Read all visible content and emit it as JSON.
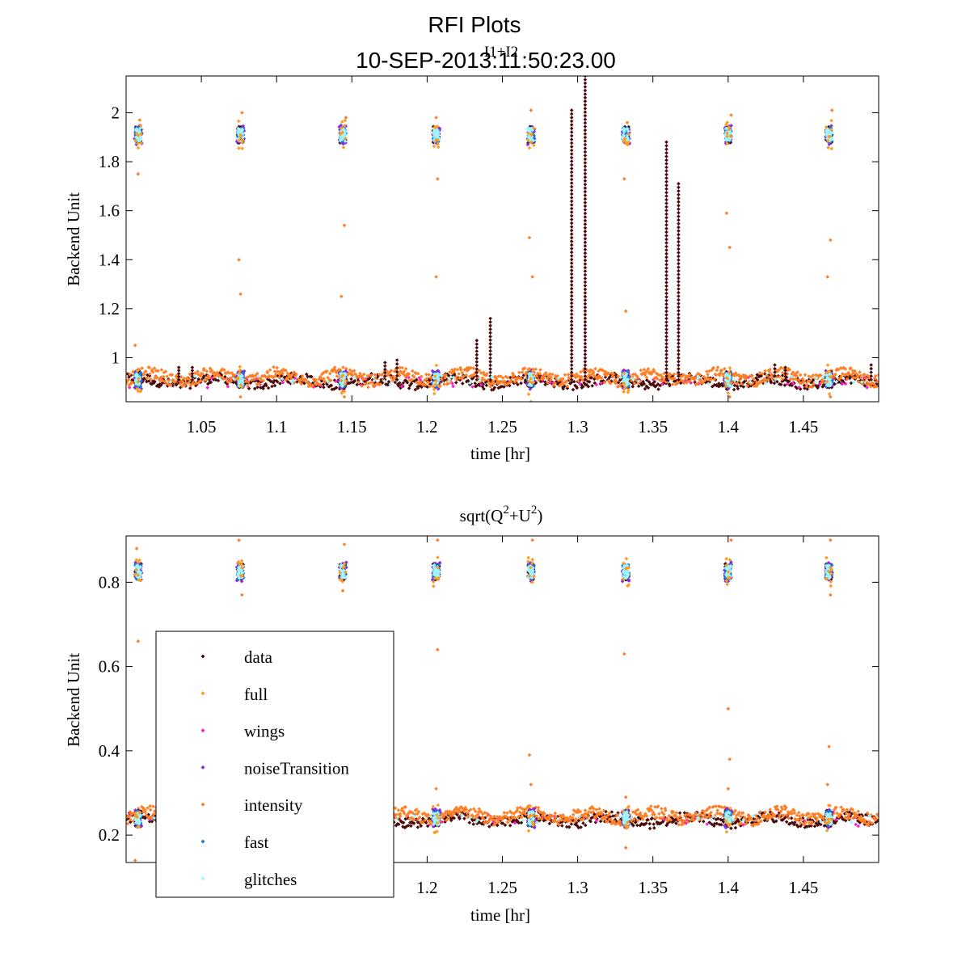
{
  "figure": {
    "title_line1": "RFI Plots",
    "title_line2": "10-SEP-2013:11:50:23.00"
  },
  "legend": {
    "entries": [
      {
        "label": "data",
        "color": "#4a0a0a"
      },
      {
        "label": "full",
        "color": "#ff9a1f"
      },
      {
        "label": "wings",
        "color": "#ff1fd2"
      },
      {
        "label": "noiseTransition",
        "color": "#8a2be2"
      },
      {
        "label": "intensity",
        "color": "#ff7f27"
      },
      {
        "label": "fast",
        "color": "#1f78d2"
      },
      {
        "label": "glitches",
        "color": "#9ff5ff"
      }
    ]
  },
  "chart_data": [
    {
      "type": "scatter",
      "title": "I1+I2",
      "xlabel": "time [hr]",
      "ylabel": "Backend Unit",
      "xlim": [
        1.0,
        1.5
      ],
      "ylim": [
        0.82,
        2.15
      ],
      "xticks": [
        1.05,
        1.1,
        1.15,
        1.2,
        1.25,
        1.3,
        1.35,
        1.4,
        1.45
      ],
      "xticklabels": [
        "1.05",
        "1.1",
        "1.15",
        "1.2",
        "1.25",
        "1.3",
        "1.35",
        "1.4",
        "1.45"
      ],
      "yticks": [
        1.0,
        1.2,
        1.4,
        1.6,
        1.8,
        2.0
      ],
      "yticklabels": [
        "1",
        "1.2",
        "1.4",
        "1.6",
        "1.8",
        "2"
      ],
      "baseline": 0.91,
      "cal_level": 1.91,
      "cal_times": [
        1.008,
        1.076,
        1.144,
        1.206,
        1.269,
        1.332,
        1.4,
        1.467
      ],
      "spikes": [
        {
          "x": 1.296,
          "y": 2.01
        },
        {
          "x": 1.305,
          "y": 2.15
        },
        {
          "x": 1.359,
          "y": 1.88
        },
        {
          "x": 1.367,
          "y": 1.71
        },
        {
          "x": 1.233,
          "y": 1.07
        },
        {
          "x": 1.242,
          "y": 1.16
        },
        {
          "x": 1.035,
          "y": 0.96
        },
        {
          "x": 1.044,
          "y": 0.96
        },
        {
          "x": 1.172,
          "y": 0.98
        },
        {
          "x": 1.18,
          "y": 0.99
        },
        {
          "x": 1.431,
          "y": 0.97
        },
        {
          "x": 1.438,
          "y": 0.96
        },
        {
          "x": 1.495,
          "y": 0.97
        }
      ],
      "outliers": [
        {
          "x": 1.006,
          "y": 1.05
        },
        {
          "x": 1.008,
          "y": 1.75
        },
        {
          "x": 1.009,
          "y": 1.97
        },
        {
          "x": 1.075,
          "y": 1.4
        },
        {
          "x": 1.076,
          "y": 1.26
        },
        {
          "x": 1.077,
          "y": 2.0
        },
        {
          "x": 1.143,
          "y": 1.25
        },
        {
          "x": 1.145,
          "y": 1.54
        },
        {
          "x": 1.146,
          "y": 1.98
        },
        {
          "x": 1.206,
          "y": 1.33
        },
        {
          "x": 1.207,
          "y": 1.73
        },
        {
          "x": 1.206,
          "y": 1.98
        },
        {
          "x": 1.268,
          "y": 1.49
        },
        {
          "x": 1.27,
          "y": 1.33
        },
        {
          "x": 1.269,
          "y": 2.01
        },
        {
          "x": 1.331,
          "y": 1.73
        },
        {
          "x": 1.332,
          "y": 1.19
        },
        {
          "x": 1.333,
          "y": 1.96
        },
        {
          "x": 1.399,
          "y": 1.59
        },
        {
          "x": 1.401,
          "y": 1.45
        },
        {
          "x": 1.402,
          "y": 1.99
        },
        {
          "x": 1.466,
          "y": 1.33
        },
        {
          "x": 1.468,
          "y": 1.48
        },
        {
          "x": 1.469,
          "y": 2.01
        },
        {
          "x": 1.076,
          "y": 0.84
        },
        {
          "x": 1.145,
          "y": 0.84
        },
        {
          "x": 1.269,
          "y": 0.82
        },
        {
          "x": 1.401,
          "y": 0.84
        },
        {
          "x": 1.468,
          "y": 0.84
        }
      ]
    },
    {
      "type": "scatter",
      "title": "sqrt(Q",
      "title_sup1": "2",
      "title_mid": "+U",
      "title_sup2": "2",
      "title_end": ")",
      "xlabel": "time [hr]",
      "ylabel": "Backend Unit",
      "xlim": [
        1.0,
        1.5
      ],
      "ylim": [
        0.135,
        0.91
      ],
      "xticks": [
        1.2,
        1.25,
        1.3,
        1.35,
        1.4,
        1.45
      ],
      "xticklabels": [
        "1.2",
        "1.25",
        "1.3",
        "1.35",
        "1.4",
        "1.45"
      ],
      "yticks": [
        0.2,
        0.4,
        0.6,
        0.8
      ],
      "yticklabels": [
        "0.2",
        "0.4",
        "0.6",
        "0.8"
      ],
      "baseline": 0.24,
      "cal_level": 0.825,
      "cal_times": [
        1.008,
        1.076,
        1.144,
        1.206,
        1.269,
        1.332,
        1.4,
        1.467
      ],
      "spikes": [],
      "outliers": [
        {
          "x": 1.008,
          "y": 0.66
        },
        {
          "x": 1.007,
          "y": 0.88
        },
        {
          "x": 1.006,
          "y": 0.14
        },
        {
          "x": 1.075,
          "y": 0.9
        },
        {
          "x": 1.077,
          "y": 0.77
        },
        {
          "x": 1.145,
          "y": 0.89
        },
        {
          "x": 1.144,
          "y": 0.78
        },
        {
          "x": 1.207,
          "y": 0.64
        },
        {
          "x": 1.206,
          "y": 0.31
        },
        {
          "x": 1.207,
          "y": 0.9
        },
        {
          "x": 1.268,
          "y": 0.39
        },
        {
          "x": 1.269,
          "y": 0.32
        },
        {
          "x": 1.27,
          "y": 0.9
        },
        {
          "x": 1.331,
          "y": 0.63
        },
        {
          "x": 1.332,
          "y": 0.29
        },
        {
          "x": 1.332,
          "y": 0.17
        },
        {
          "x": 1.4,
          "y": 0.5
        },
        {
          "x": 1.401,
          "y": 0.38
        },
        {
          "x": 1.402,
          "y": 0.9
        },
        {
          "x": 1.4,
          "y": 0.31
        },
        {
          "x": 1.467,
          "y": 0.41
        },
        {
          "x": 1.466,
          "y": 0.32
        },
        {
          "x": 1.468,
          "y": 0.9
        },
        {
          "x": 1.468,
          "y": 0.77
        }
      ]
    }
  ]
}
